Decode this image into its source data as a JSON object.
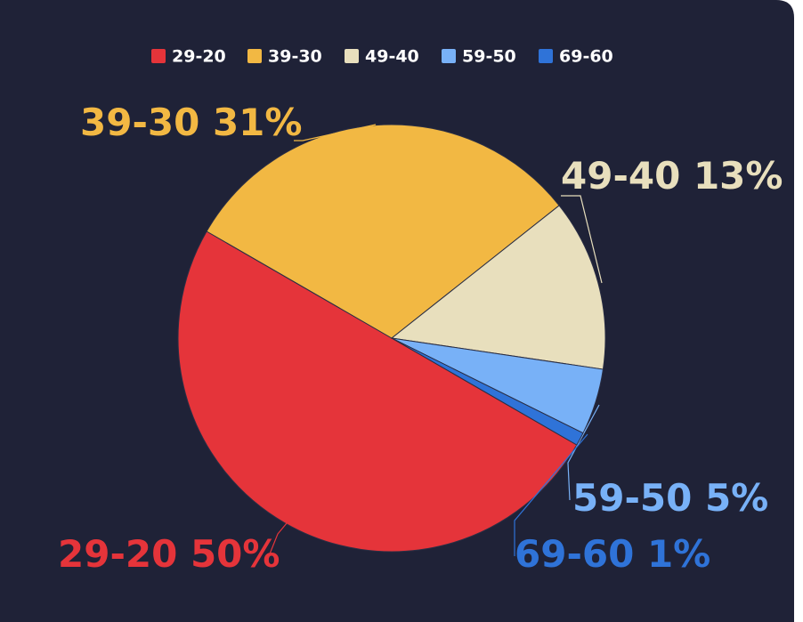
{
  "chart_data": {
    "type": "pie",
    "categories": [
      "29-20",
      "39-30",
      "49-40",
      "59-50",
      "69-60"
    ],
    "values": [
      50,
      31,
      13,
      5,
      1
    ],
    "value_labels": [
      "50%",
      "31%",
      "13%",
      "5%",
      "1%"
    ],
    "colors": [
      "#e5343a",
      "#f2b843",
      "#e8dfbd",
      "#78b1f7",
      "#2f73d8"
    ],
    "legend": "top"
  }
}
